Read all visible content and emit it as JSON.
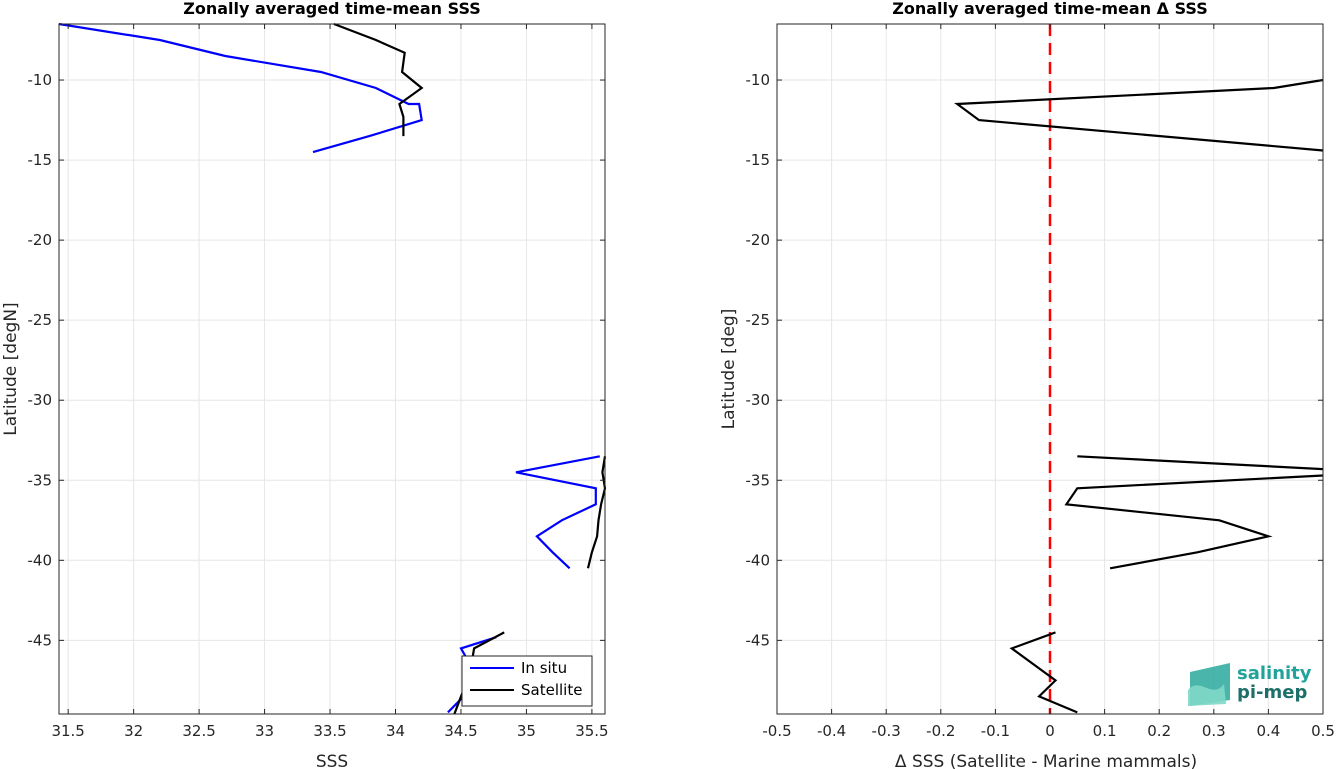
{
  "chart_data": [
    {
      "type": "line",
      "title": "Zonally averaged time-mean SSS",
      "xlabel": "SSS",
      "ylabel": "Latitude [degN]",
      "xlim": [
        31.43,
        35.6
      ],
      "ylim": [
        -49.6,
        -6.5
      ],
      "xticks": [
        31.5,
        32,
        32.5,
        33,
        33.5,
        34,
        34.5,
        35,
        35.5
      ],
      "yticks": [
        -10,
        -15,
        -20,
        -25,
        -30,
        -35,
        -40,
        -45
      ],
      "grid": true,
      "legend_position": "bottom-right",
      "series": [
        {
          "name": "In situ",
          "color": "#0000ff",
          "segments": [
            [
              [
                31.43,
                -6.5
              ],
              [
                32.2,
                -7.5
              ],
              [
                32.7,
                -8.5
              ],
              [
                33.43,
                -9.5
              ],
              [
                33.85,
                -10.5
              ],
              [
                34.1,
                -11.5
              ],
              [
                34.18,
                -11.5
              ],
              [
                34.2,
                -12.5
              ],
              [
                33.8,
                -13.5
              ],
              [
                33.37,
                -14.5
              ]
            ],
            [
              [
                35.56,
                -33.5
              ],
              [
                34.92,
                -34.5
              ],
              [
                35.53,
                -35.5
              ],
              [
                35.53,
                -36.5
              ],
              [
                35.27,
                -37.5
              ],
              [
                35.08,
                -38.5
              ],
              [
                35.2,
                -39.5
              ],
              [
                35.33,
                -40.5
              ]
            ],
            [
              [
                34.77,
                -44.8
              ],
              [
                34.5,
                -45.5
              ],
              [
                34.57,
                -46.5
              ],
              [
                34.55,
                -47.5
              ],
              [
                34.52,
                -48.5
              ],
              [
                34.4,
                -49.5
              ]
            ]
          ]
        },
        {
          "name": "Satellite",
          "color": "#000000",
          "segments": [
            [
              [
                33.53,
                -6.5
              ],
              [
                33.85,
                -7.5
              ],
              [
                34.07,
                -8.3
              ],
              [
                34.05,
                -9.5
              ],
              [
                34.2,
                -10.5
              ],
              [
                34.03,
                -11.5
              ],
              [
                34.06,
                -12.3
              ],
              [
                34.06,
                -13.5
              ]
            ],
            [
              [
                35.6,
                -33.5
              ],
              [
                35.58,
                -34.5
              ],
              [
                35.6,
                -35.5
              ],
              [
                35.57,
                -36.5
              ],
              [
                35.55,
                -37.5
              ],
              [
                35.54,
                -38.5
              ],
              [
                35.5,
                -39.5
              ],
              [
                35.47,
                -40.5
              ]
            ],
            [
              [
                34.83,
                -44.5
              ],
              [
                34.6,
                -45.5
              ],
              [
                34.58,
                -46.5
              ],
              [
                34.55,
                -47.5
              ],
              [
                34.5,
                -48.5
              ],
              [
                34.45,
                -49.6
              ]
            ]
          ]
        }
      ]
    },
    {
      "type": "line",
      "title": "Zonally averaged time-mean Δ SSS",
      "xlabel": "Δ SSS (Satellite - Marine mammals)",
      "ylabel": "Latitude [deg]",
      "xlim": [
        -0.5,
        0.5
      ],
      "ylim": [
        -49.6,
        -6.5
      ],
      "xticks": [
        -0.5,
        -0.4,
        -0.3,
        -0.2,
        -0.1,
        0,
        0.1,
        0.2,
        0.3,
        0.4,
        0.5
      ],
      "yticks": [
        -10,
        -15,
        -20,
        -25,
        -30,
        -35,
        -40,
        -45
      ],
      "grid": true,
      "reference_line": {
        "x": 0,
        "color": "#ff0000",
        "style": "dashed"
      },
      "series": [
        {
          "color": "#000000",
          "segments": [
            [
              [
                0.5,
                -10
              ],
              [
                0.41,
                -10.5
              ],
              [
                -0.17,
                -11.5
              ],
              [
                -0.13,
                -12.5
              ],
              [
                0.5,
                -14.4
              ]
            ],
            [
              [
                0.05,
                -33.5
              ],
              [
                0.5,
                -34.3
              ]
            ],
            [
              [
                0.5,
                -34.7
              ],
              [
                0.05,
                -35.5
              ],
              [
                0.03,
                -36.5
              ],
              [
                0.31,
                -37.5
              ],
              [
                0.4,
                -38.5
              ],
              [
                0.27,
                -39.5
              ],
              [
                0.11,
                -40.5
              ]
            ],
            [
              [
                0.01,
                -44.5
              ],
              [
                -0.07,
                -45.5
              ],
              [
                -0.03,
                -46.5
              ],
              [
                0.01,
                -47.5
              ],
              [
                -0.02,
                -48.5
              ],
              [
                0.05,
                -49.5
              ]
            ]
          ]
        }
      ]
    }
  ],
  "legend": {
    "items": [
      "In situ",
      "Satellite"
    ]
  },
  "logo": {
    "line1": "salinity",
    "line2": "pi-mep"
  }
}
